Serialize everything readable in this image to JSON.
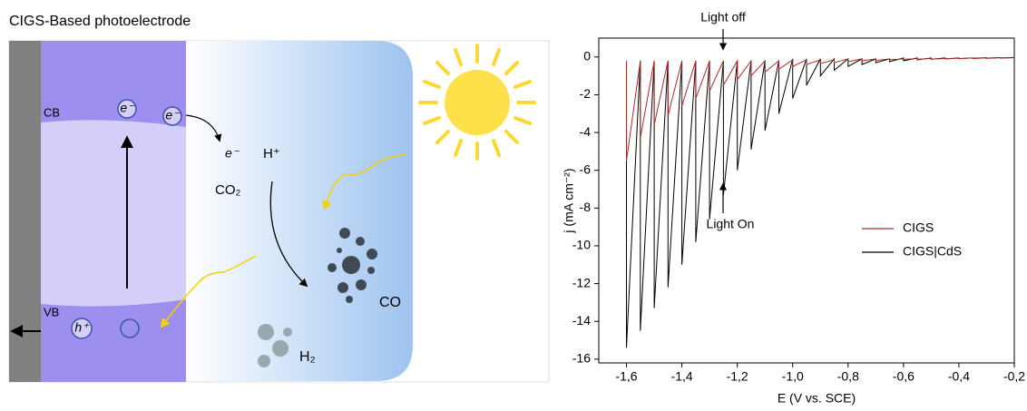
{
  "diagram": {
    "title": "CIGS-Based photoelectrode",
    "cb": "CB",
    "vb": "VB",
    "electron_1": "e⁻",
    "electron_2": "e⁻",
    "electron_free": "e⁻",
    "hole": "h⁺",
    "proton": "H⁺",
    "co2": "CO₂",
    "co": "CO",
    "h2": "H₂"
  },
  "chart_data": {
    "type": "line",
    "xlabel": "E (V vs. SCE)",
    "ylabel": "j (mA cm⁻²)",
    "annotations": [
      "Light off",
      "Light On"
    ],
    "x": [
      -1.6,
      -1.6,
      -1.55,
      -1.55,
      -1.5,
      -1.5,
      -1.45,
      -1.45,
      -1.4,
      -1.4,
      -1.35,
      -1.35,
      -1.3,
      -1.3,
      -1.25,
      -1.25,
      -1.2,
      -1.2,
      -1.15,
      -1.15,
      -1.1,
      -1.1,
      -1.05,
      -1.05,
      -1.0,
      -1.0,
      -0.95,
      -0.95,
      -0.9,
      -0.9,
      -0.85,
      -0.85,
      -0.8,
      -0.8,
      -0.75,
      -0.75,
      -0.7,
      -0.7,
      -0.65,
      -0.65,
      -0.6,
      -0.6,
      -0.55,
      -0.55,
      -0.5,
      -0.5,
      -0.45,
      -0.45,
      -0.4,
      -0.4,
      -0.35,
      -0.35,
      -0.3,
      -0.3,
      -0.25,
      -0.25,
      -0.2,
      -0.2
    ],
    "series": [
      {
        "name": "CIGS",
        "color": "#a52a2a",
        "values": [
          -0.2,
          -5.5,
          -0.2,
          -4.3,
          -0.2,
          -3.6,
          -0.2,
          -3.1,
          -0.2,
          -2.6,
          -0.2,
          -2.2,
          -0.2,
          -1.8,
          -0.2,
          -1.5,
          -0.2,
          -1.2,
          -0.2,
          -1.0,
          -0.2,
          -0.8,
          -0.2,
          -0.65,
          -0.15,
          -0.5,
          -0.15,
          -0.4,
          -0.15,
          -0.35,
          -0.15,
          -0.3,
          -0.1,
          -0.25,
          -0.1,
          -0.2,
          -0.1,
          -0.18,
          -0.1,
          -0.15,
          -0.1,
          -0.13,
          -0.08,
          -0.12,
          -0.08,
          -0.11,
          -0.08,
          -0.1,
          -0.06,
          -0.09,
          -0.05,
          -0.08,
          -0.05,
          -0.07,
          -0.04,
          -0.06,
          -0.04,
          -0.05
        ]
      },
      {
        "name": "CIGS|CdS",
        "color": "#000000",
        "values": [
          -0.2,
          -15.4,
          -0.2,
          -14.5,
          -0.2,
          -13.3,
          -0.2,
          -12.2,
          -0.2,
          -11.0,
          -0.2,
          -9.8,
          -0.2,
          -8.6,
          -0.2,
          -7.3,
          -0.2,
          -6.0,
          -0.2,
          -4.9,
          -0.2,
          -3.9,
          -0.2,
          -3.0,
          -0.1,
          -2.2,
          -0.1,
          -1.5,
          -0.1,
          -1.0,
          -0.1,
          -0.7,
          -0.1,
          -0.5,
          -0.1,
          -0.4,
          -0.1,
          -0.3,
          -0.1,
          -0.25,
          -0.05,
          -0.2,
          -0.05,
          -0.15,
          -0.05,
          -0.12,
          -0.05,
          -0.1,
          -0.05,
          -0.08,
          -0.05,
          -0.07,
          -0.04,
          -0.06,
          -0.03,
          -0.05,
          -0.03,
          -0.04
        ]
      }
    ],
    "xlim": [
      -1.7,
      -0.2
    ],
    "xticks": [
      {
        "value": -1.6,
        "label": "-1,6"
      },
      {
        "value": -1.4,
        "label": "-1,4"
      },
      {
        "value": -1.2,
        "label": "-1,2"
      },
      {
        "value": -1.0,
        "label": "-1,0"
      },
      {
        "value": -0.8,
        "label": "-0,8"
      },
      {
        "value": -0.6,
        "label": "-0,6"
      },
      {
        "value": -0.4,
        "label": "-0,4"
      },
      {
        "value": -0.2,
        "label": "-0,2"
      }
    ],
    "ylim": [
      -16.2,
      1
    ],
    "yticks": [
      0,
      -2,
      -4,
      -6,
      -8,
      -10,
      -12,
      -14,
      -16
    ],
    "legend": "center-right"
  }
}
